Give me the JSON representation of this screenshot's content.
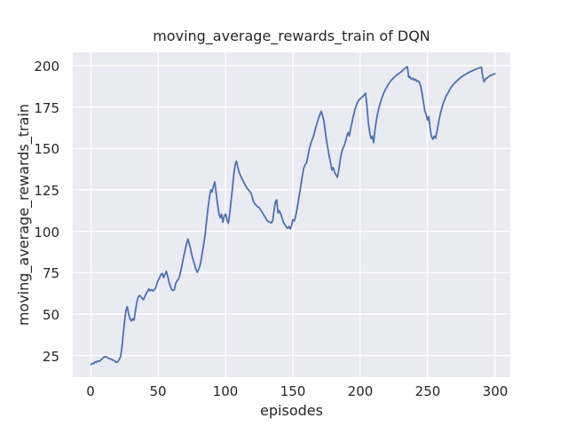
{
  "figure": {
    "title": "moving_average_rewards_train of DQN",
    "xlabel": "episodes",
    "ylabel": "moving_average_rewards_train"
  },
  "colors": {
    "line": "#4c72b0",
    "axes_background": "#eaeaf2",
    "grid": "#ffffff",
    "text": "#262626",
    "figure_background": "#ffffff"
  },
  "chart_data": {
    "type": "line",
    "title": "moving_average_rewards_train of DQN",
    "xlabel": "episodes",
    "ylabel": "moving_average_rewards_train",
    "x_ticks": [
      0,
      50,
      100,
      150,
      200,
      250,
      300
    ],
    "y_ticks": [
      25,
      50,
      75,
      100,
      125,
      150,
      175,
      200
    ],
    "xlim": [
      -13.5,
      311.5
    ],
    "ylim": [
      11.9,
      208.0
    ],
    "grid": true,
    "legend": false,
    "series": [
      {
        "name": "moving_average_rewards_train",
        "x_start": 0,
        "x_step": 1,
        "values": [
          19.5,
          20.3,
          20.0,
          21.2,
          20.8,
          21.8,
          21.4,
          22.0,
          22.8,
          23.6,
          24.2,
          24.3,
          23.9,
          23.3,
          23.0,
          22.8,
          22.4,
          21.9,
          21.4,
          20.8,
          21.2,
          22.5,
          24.5,
          30.0,
          38.0,
          46.0,
          52.0,
          54.5,
          50.0,
          47.0,
          45.8,
          47.2,
          46.3,
          51.5,
          57.0,
          60.0,
          61.3,
          60.5,
          59.6,
          58.7,
          60.5,
          62.3,
          63.6,
          65.2,
          63.9,
          64.8,
          63.9,
          64.8,
          65.7,
          68.4,
          70.5,
          71.9,
          74.0,
          74.6,
          72.0,
          74.0,
          75.8,
          73.0,
          69.3,
          66.6,
          64.8,
          64.3,
          64.8,
          68.4,
          70.2,
          71.1,
          73.5,
          77.0,
          81.0,
          85.0,
          89.0,
          92.5,
          95.3,
          92.5,
          89.5,
          85.5,
          82.5,
          79.8,
          77.0,
          75.2,
          76.8,
          79.2,
          83.5,
          88.5,
          93.5,
          99.0,
          107.0,
          114.5,
          120.5,
          125.0,
          123.8,
          127.2,
          129.8,
          123.0,
          116.5,
          111.0,
          108.2,
          110.3,
          105.5,
          109.3,
          110.3,
          107.0,
          104.8,
          109.8,
          117.5,
          125.3,
          133.5,
          139.8,
          142.3,
          139.0,
          136.0,
          133.6,
          132.0,
          130.4,
          128.8,
          127.3,
          125.9,
          125.0,
          124.0,
          122.8,
          120.0,
          117.5,
          116.3,
          115.4,
          114.7,
          114.2,
          113.0,
          111.7,
          110.4,
          109.0,
          107.6,
          106.3,
          105.8,
          105.4,
          105.0,
          106.5,
          112.5,
          117.8,
          118.9,
          111.0,
          112.4,
          110.3,
          108.0,
          105.2,
          104.2,
          102.6,
          101.8,
          102.8,
          101.4,
          103.4,
          107.0,
          106.2,
          109.0,
          113.2,
          118.0,
          123.0,
          128.0,
          133.2,
          138.0,
          140.0,
          141.2,
          144.5,
          149.0,
          152.0,
          154.6,
          156.8,
          159.6,
          162.6,
          165.5,
          168.1,
          170.4,
          172.4,
          169.8,
          167.0,
          160.8,
          154.8,
          149.8,
          145.2,
          141.3,
          136.9,
          138.4,
          135.6,
          134.0,
          132.6,
          136.5,
          142.2,
          146.7,
          149.7,
          151.5,
          154.0,
          157.2,
          159.6,
          157.7,
          162.3,
          166.2,
          169.8,
          173.3,
          175.6,
          177.8,
          179.2,
          180.1,
          180.7,
          181.4,
          182.4,
          183.3,
          176.0,
          165.5,
          160.0,
          156.0,
          157.5,
          153.5,
          161.0,
          167.0,
          171.3,
          174.8,
          177.6,
          180.2,
          182.5,
          184.4,
          186.0,
          187.5,
          188.8,
          190.0,
          191.1,
          192.0,
          192.8,
          193.5,
          194.2,
          194.8,
          195.4,
          196.0,
          196.6,
          197.4,
          198.2,
          198.9,
          199.4,
          192.9,
          193.3,
          191.8,
          192.4,
          191.2,
          191.8,
          190.5,
          190.8,
          190.0,
          187.5,
          183.0,
          177.5,
          172.5,
          170.5,
          167.0,
          169.2,
          162.0,
          157.0,
          155.5,
          157.5,
          156.3,
          160.0,
          164.5,
          169.0,
          172.5,
          175.5,
          178.0,
          180.0,
          181.8,
          183.3,
          184.8,
          186.2,
          187.4,
          188.4,
          189.3,
          190.2,
          191.0,
          191.7,
          192.4,
          193.0,
          193.6,
          194.1,
          194.6,
          195.1,
          195.6,
          196.0,
          196.4,
          196.8,
          197.2,
          197.6,
          197.9,
          198.2,
          198.5,
          198.8,
          199.0,
          193.5,
          190.2,
          191.8,
          192.4,
          193.1,
          193.6,
          194.1,
          194.4,
          194.7,
          195.1
        ]
      }
    ]
  }
}
